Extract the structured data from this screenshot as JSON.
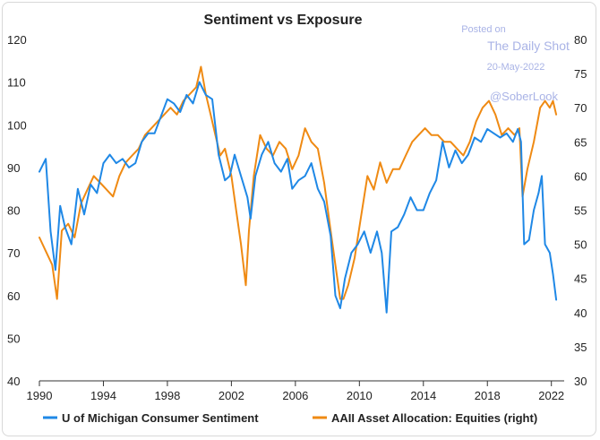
{
  "chart_data": {
    "type": "line",
    "title": "Sentiment vs Exposure",
    "x_ticks": [
      "1990",
      "1994",
      "1998",
      "2002",
      "2006",
      "2010",
      "2014",
      "2018",
      "2022"
    ],
    "xlim": [
      1990,
      2022.8
    ],
    "ylim_left": [
      40,
      120
    ],
    "ylim_right": [
      30,
      80
    ],
    "left_ticks": [
      "40",
      "50",
      "60",
      "70",
      "80",
      "90",
      "100",
      "110",
      "120"
    ],
    "right_ticks": [
      "30",
      "35",
      "40",
      "45",
      "50",
      "55",
      "60",
      "65",
      "70",
      "75",
      "80"
    ],
    "colors": {
      "umich": "#1f88e6",
      "aaii": "#ef8a13"
    },
    "series": [
      {
        "name": "U of Michigan Consumer Sentiment",
        "axis": "left",
        "x": [
          1990.0,
          1990.4,
          1990.7,
          1991.0,
          1991.3,
          1991.6,
          1992.0,
          1992.4,
          1992.8,
          1993.2,
          1993.6,
          1994.0,
          1994.4,
          1994.8,
          1995.2,
          1995.6,
          1996.0,
          1996.4,
          1996.8,
          1997.2,
          1997.6,
          1998.0,
          1998.4,
          1998.8,
          1999.2,
          1999.6,
          2000.0,
          2000.4,
          2000.8,
          2001.2,
          2001.6,
          2001.9,
          2002.2,
          2002.6,
          2003.0,
          2003.2,
          2003.5,
          2003.9,
          2004.3,
          2004.7,
          2005.1,
          2005.5,
          2005.8,
          2006.2,
          2006.6,
          2007.0,
          2007.4,
          2007.8,
          2008.2,
          2008.5,
          2008.8,
          2009.1,
          2009.5,
          2009.9,
          2010.3,
          2010.7,
          2011.1,
          2011.4,
          2011.7,
          2012.0,
          2012.4,
          2012.8,
          2013.2,
          2013.6,
          2014.0,
          2014.4,
          2014.8,
          2015.2,
          2015.6,
          2016.0,
          2016.4,
          2016.8,
          2017.2,
          2017.6,
          2018.0,
          2018.4,
          2018.8,
          2019.2,
          2019.6,
          2019.9,
          2020.1,
          2020.3,
          2020.6,
          2020.9,
          2021.2,
          2021.4,
          2021.6,
          2021.9,
          2022.1,
          2022.3
        ],
        "values": [
          89,
          92,
          75,
          66,
          81,
          76,
          72,
          85,
          79,
          86,
          84,
          91,
          93,
          91,
          92,
          90,
          91,
          96,
          98,
          98,
          102,
          106,
          105,
          103,
          107,
          105,
          110,
          107,
          106,
          93,
          87,
          88,
          93,
          88,
          83,
          78,
          88,
          93,
          96,
          91,
          89,
          92,
          85,
          87,
          88,
          91,
          85,
          82,
          74,
          60,
          57,
          64,
          70,
          72,
          75,
          70,
          75,
          70,
          56,
          75,
          76,
          79,
          83,
          80,
          80,
          84,
          87,
          96,
          90,
          94,
          91,
          93,
          97,
          96,
          99,
          98,
          97,
          98,
          96,
          99,
          96,
          72,
          73,
          80,
          84,
          88,
          72,
          70,
          65,
          59
        ]
      },
      {
        "name": "AAII Asset Allocation: Equities (right)",
        "axis": "right",
        "x": [
          1990.0,
          1990.4,
          1990.8,
          1991.1,
          1991.4,
          1991.8,
          1992.2,
          1992.6,
          1993.0,
          1993.4,
          1993.8,
          1994.2,
          1994.6,
          1995.0,
          1995.4,
          1995.8,
          1996.2,
          1996.6,
          1997.0,
          1997.4,
          1997.8,
          1998.2,
          1998.6,
          1999.0,
          1999.4,
          1999.8,
          2000.1,
          2000.4,
          2000.7,
          2001.0,
          2001.3,
          2001.6,
          2002.0,
          2002.3,
          2002.6,
          2002.9,
          2003.1,
          2003.4,
          2003.8,
          2004.2,
          2004.6,
          2005.0,
          2005.4,
          2005.8,
          2006.2,
          2006.6,
          2007.0,
          2007.4,
          2007.8,
          2008.2,
          2008.5,
          2008.8,
          2009.0,
          2009.3,
          2009.7,
          2010.1,
          2010.5,
          2010.9,
          2011.3,
          2011.7,
          2012.1,
          2012.5,
          2012.9,
          2013.3,
          2013.7,
          2014.1,
          2014.5,
          2014.9,
          2015.3,
          2015.7,
          2016.1,
          2016.5,
          2016.9,
          2017.3,
          2017.7,
          2018.1,
          2018.5,
          2018.9,
          2019.3,
          2019.7,
          2020.0,
          2020.2,
          2020.5,
          2020.9,
          2021.3,
          2021.6,
          2021.9,
          2022.1,
          2022.3
        ],
        "values": [
          51,
          49,
          47,
          42,
          52,
          53,
          51,
          56,
          58,
          60,
          59,
          58,
          57,
          60,
          62,
          63,
          64,
          66,
          67,
          68,
          69,
          70,
          69,
          71,
          72,
          73,
          76,
          72,
          69,
          66,
          63,
          64,
          60,
          55,
          50,
          44,
          52,
          60,
          66,
          64,
          63,
          65,
          64,
          61,
          63,
          67,
          65,
          64,
          59,
          52,
          47,
          42,
          42,
          44,
          48,
          54,
          60,
          58,
          62,
          59,
          61,
          61,
          63,
          65,
          66,
          67,
          66,
          66,
          65,
          65,
          64,
          63,
          65,
          68,
          70,
          71,
          69,
          66,
          67,
          66,
          67,
          57,
          61,
          65,
          70,
          71,
          70,
          71,
          69
        ]
      }
    ]
  },
  "watermark": {
    "line1": "Posted on",
    "line2": "The Daily Shot",
    "line3": "20-May-2022",
    "handle": "@SoberLook"
  }
}
